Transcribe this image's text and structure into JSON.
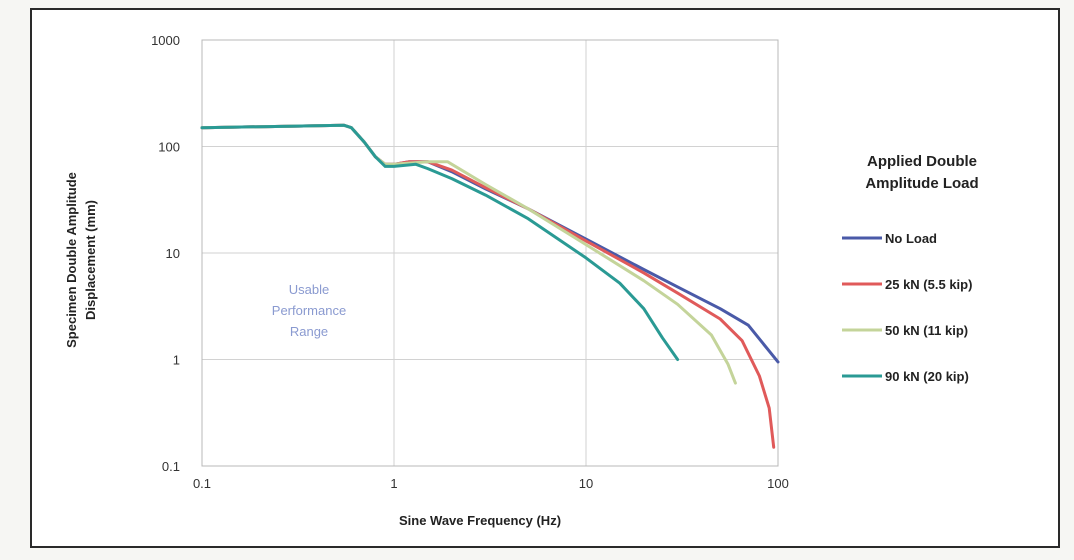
{
  "chart_data": {
    "type": "line",
    "title": "",
    "xlabel": "Sine Wave Frequency (Hz)",
    "ylabel": [
      "Specimen Double Amplitude",
      "Displacement (mm)"
    ],
    "xscale": "log",
    "yscale": "log",
    "xlim": [
      0.1,
      100
    ],
    "ylim": [
      0.1,
      1000
    ],
    "x_ticks": [
      "0.1",
      "1",
      "10",
      "100"
    ],
    "y_ticks": [
      "0.1",
      "1",
      "10",
      "100",
      "1000"
    ],
    "grid": true,
    "legend": {
      "title": [
        "Applied Double",
        "Amplitude Load"
      ],
      "position": "right"
    },
    "annotation": [
      "Usable",
      "Performance",
      "Range"
    ],
    "series": [
      {
        "name": "No Load",
        "color": "#4a5aa8",
        "points": [
          [
            0.1,
            150
          ],
          [
            0.55,
            158
          ],
          [
            0.6,
            150
          ],
          [
            0.7,
            110
          ],
          [
            0.8,
            80
          ],
          [
            0.9,
            68
          ],
          [
            1.0,
            68
          ],
          [
            1.2,
            72
          ],
          [
            1.5,
            72
          ],
          [
            2,
            58
          ],
          [
            3,
            40
          ],
          [
            5,
            26
          ],
          [
            10,
            13.5
          ],
          [
            20,
            7
          ],
          [
            30,
            4.8
          ],
          [
            50,
            3.0
          ],
          [
            70,
            2.1
          ],
          [
            90,
            1.2
          ],
          [
            100,
            0.95
          ]
        ]
      },
      {
        "name": "25 kN (5.5 kip)",
        "color": "#e05a5a",
        "points": [
          [
            0.1,
            150
          ],
          [
            0.55,
            158
          ],
          [
            0.6,
            150
          ],
          [
            0.7,
            110
          ],
          [
            0.8,
            80
          ],
          [
            0.9,
            68
          ],
          [
            1.0,
            68
          ],
          [
            1.2,
            72
          ],
          [
            1.5,
            72
          ],
          [
            2,
            60
          ],
          [
            3,
            41
          ],
          [
            5,
            26
          ],
          [
            10,
            13
          ],
          [
            20,
            6.5
          ],
          [
            30,
            4.2
          ],
          [
            50,
            2.4
          ],
          [
            65,
            1.5
          ],
          [
            80,
            0.7
          ],
          [
            90,
            0.35
          ],
          [
            95,
            0.15
          ]
        ]
      },
      {
        "name": "50 kN (11 kip)",
        "color": "#c4d49a",
        "points": [
          [
            0.1,
            150
          ],
          [
            0.55,
            158
          ],
          [
            0.6,
            150
          ],
          [
            0.7,
            110
          ],
          [
            0.8,
            80
          ],
          [
            0.9,
            68
          ],
          [
            1.0,
            68
          ],
          [
            1.5,
            72
          ],
          [
            1.9,
            72
          ],
          [
            3,
            44
          ],
          [
            5,
            26
          ],
          [
            10,
            12
          ],
          [
            20,
            5.5
          ],
          [
            30,
            3.3
          ],
          [
            45,
            1.7
          ],
          [
            55,
            0.9
          ],
          [
            60,
            0.6
          ]
        ]
      },
      {
        "name": "90 kN (20 kip)",
        "color": "#2a9a94",
        "points": [
          [
            0.1,
            150
          ],
          [
            0.55,
            158
          ],
          [
            0.6,
            150
          ],
          [
            0.7,
            110
          ],
          [
            0.8,
            80
          ],
          [
            0.9,
            65
          ],
          [
            1.0,
            65
          ],
          [
            1.3,
            68
          ],
          [
            1.5,
            62
          ],
          [
            2,
            50
          ],
          [
            3,
            35
          ],
          [
            5,
            21
          ],
          [
            10,
            9
          ],
          [
            15,
            5.2
          ],
          [
            20,
            3.0
          ],
          [
            25,
            1.6
          ],
          [
            30,
            1.0
          ]
        ]
      }
    ]
  }
}
